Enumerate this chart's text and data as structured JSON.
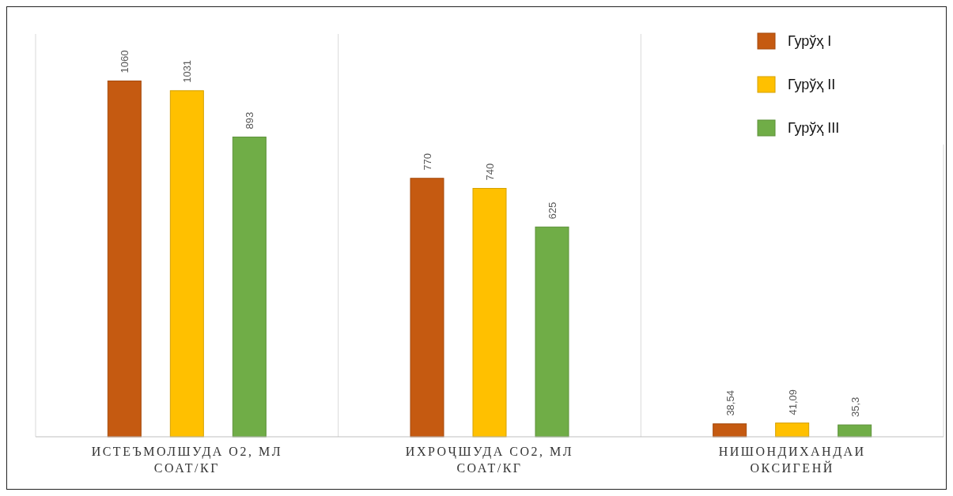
{
  "chart_data": {
    "type": "bar",
    "categories": [
      "ИСТЕЪМОЛШУДА О2, МЛ СОАТ/КГ",
      "ИХРОҶШУДА CO2, МЛ СОАТ/КГ",
      "НИШОНДИХАНДАИ ОКСИГЕНЙ"
    ],
    "series": [
      {
        "name": "Гурўҳ I",
        "color": "#c55a11",
        "values": [
          1060,
          770,
          38.54
        ],
        "value_labels": [
          "1060",
          "770",
          "38,54"
        ]
      },
      {
        "name": "Гурўҳ II",
        "color": "#ffc000",
        "values": [
          1031,
          740,
          41.09
        ],
        "value_labels": [
          "1031",
          "740",
          "41,09"
        ]
      },
      {
        "name": "Гурўҳ III",
        "color": "#70ad47",
        "values": [
          893,
          625,
          35.3
        ],
        "value_labels": [
          "893",
          "625",
          "35,3"
        ]
      }
    ],
    "ylim": [
      0,
      1200
    ],
    "grid": "x",
    "legend": "top right"
  }
}
